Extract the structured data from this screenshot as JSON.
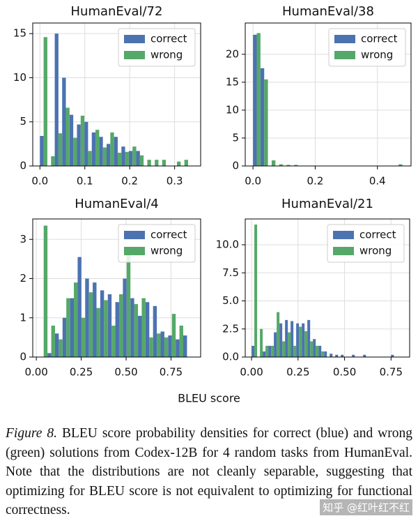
{
  "chart_data": [
    {
      "type": "histogram",
      "title": "HumanEval/72",
      "bins": [
        0,
        0.0165,
        0.033,
        0.0495,
        0.066,
        0.0825,
        0.099,
        0.1155,
        0.132,
        0.1485,
        0.165,
        0.1815,
        0.198,
        0.2145,
        0.231,
        0.2475,
        0.264,
        0.2805,
        0.297,
        0.3135,
        0.33
      ],
      "series": [
        {
          "name": "correct",
          "color": "#4c72b0",
          "values": [
            3.4,
            0,
            15,
            10,
            5.8,
            4.7,
            5,
            3.8,
            3.3,
            2.5,
            3.3,
            2.2,
            1.7,
            1.7,
            0,
            0,
            0,
            0,
            0,
            0
          ]
        },
        {
          "name": "wrong",
          "color": "#55a868",
          "values": [
            14.6,
            1.1,
            3.7,
            6.6,
            3.2,
            5.7,
            1.7,
            4.1,
            2.1,
            3.8,
            1.5,
            1.6,
            2.2,
            1.2,
            0.7,
            0.7,
            0.7,
            0,
            0.5,
            0.7
          ]
        }
      ],
      "xlim": [
        -0.016,
        0.358
      ],
      "xticks": [
        {
          "value": 0,
          "label": "0.0"
        },
        0.1,
        0.2,
        0.3
      ],
      "ylim": [
        0,
        16.2
      ],
      "yticks": [
        0,
        5,
        10,
        15
      ],
      "grid": true,
      "legend": "upper right"
    },
    {
      "type": "histogram",
      "title": "HumanEval/38",
      "bins": [
        0,
        0.024,
        0.048,
        0.072,
        0.096,
        0.12,
        0.144,
        0.168,
        0.192,
        0.216,
        0.24,
        0.264,
        0.288,
        0.312,
        0.336,
        0.36,
        0.384,
        0.408,
        0.432,
        0.456,
        0.48
      ],
      "series": [
        {
          "name": "correct",
          "color": "#4c72b0",
          "values": [
            23.5,
            17.5,
            0,
            0,
            0,
            0,
            0,
            0,
            0,
            0,
            0,
            0,
            0,
            0,
            0,
            0,
            0,
            0,
            0,
            0
          ]
        },
        {
          "name": "wrong",
          "color": "#55a868",
          "values": [
            23.8,
            15.5,
            1,
            0.3,
            0.2,
            0.2,
            0,
            0,
            0,
            0,
            0,
            0,
            0,
            0,
            0,
            0,
            0,
            0,
            0,
            0.3
          ]
        }
      ],
      "xlim": [
        -0.025,
        0.508
      ],
      "xticks": [
        {
          "value": 0,
          "label": "0.0"
        },
        0.2,
        0.4
      ],
      "ylim": [
        0,
        25.6
      ],
      "yticks": [
        0,
        5,
        10,
        15,
        20
      ],
      "grid": true,
      "legend": "upper right"
    },
    {
      "type": "histogram",
      "title": "HumanEval/4",
      "bins": [
        0.02,
        0.062,
        0.104,
        0.146,
        0.188,
        0.23,
        0.272,
        0.314,
        0.356,
        0.398,
        0.44,
        0.482,
        0.524,
        0.566,
        0.608,
        0.65,
        0.692,
        0.734,
        0.776,
        0.818,
        0.86
      ],
      "series": [
        {
          "name": "correct",
          "color": "#4c72b0",
          "values": [
            0,
            0.1,
            0.6,
            1.0,
            1.5,
            2.55,
            2.0,
            1.9,
            1.7,
            1.6,
            1.4,
            2.0,
            1.5,
            1.05,
            1.4,
            1.3,
            0.65,
            0.55,
            0.45,
            0.55
          ]
        },
        {
          "name": "wrong",
          "color": "#55a868",
          "values": [
            3.35,
            0.8,
            0.45,
            1.5,
            1.9,
            1.0,
            1.65,
            1.25,
            1.45,
            0.8,
            1.6,
            2.75,
            1.35,
            1.5,
            0.5,
            0.6,
            0.5,
            1.1,
            0.8,
            0
          ]
        }
      ],
      "xlim": [
        -0.02,
        0.915
      ],
      "xticks": [
        {
          "value": 0,
          "label": "0.00"
        },
        0.25,
        {
          "value": 0.5,
          "label": "0.50"
        },
        0.75
      ],
      "ylim": [
        0,
        3.52
      ],
      "yticks": [
        0,
        1,
        2,
        3
      ],
      "grid": true,
      "legend": "upper right"
    },
    {
      "type": "histogram",
      "title": "HumanEval/21",
      "bins": [
        0,
        0.03,
        0.06,
        0.09,
        0.12,
        0.15,
        0.18,
        0.21,
        0.24,
        0.27,
        0.3,
        0.33,
        0.36,
        0.39,
        0.42,
        0.45,
        0.48,
        0.51,
        0.54,
        0.57,
        0.6,
        0.63,
        0.66,
        0.69,
        0.72,
        0.75,
        0.78
      ],
      "series": [
        {
          "name": "correct",
          "color": "#4c72b0",
          "values": [
            1.0,
            0,
            0.5,
            1.0,
            2.2,
            3.0,
            3.3,
            3.2,
            3.0,
            3.0,
            3.3,
            1.6,
            1.0,
            0.5,
            0.3,
            0.2,
            0.2,
            0,
            0.2,
            0,
            0.2,
            0,
            0,
            0,
            0,
            0.2
          ]
        },
        {
          "name": "wrong",
          "color": "#55a868",
          "values": [
            11.8,
            2.5,
            1.0,
            1.0,
            4.0,
            1.4,
            2.2,
            1.0,
            2.7,
            2.3,
            1.4,
            1.0,
            0.5,
            0,
            0,
            0,
            0,
            0,
            0,
            0,
            0,
            0,
            0,
            0,
            0,
            0
          ]
        }
      ],
      "xlim": [
        -0.034,
        0.85
      ],
      "xticks": [
        {
          "value": 0,
          "label": "0.00"
        },
        0.25,
        {
          "value": 0.5,
          "label": "0.50"
        },
        0.75
      ],
      "ylim": [
        0,
        12.3
      ],
      "yticks": [
        {
          "value": 0,
          "label": "0.0"
        },
        2.5,
        {
          "value": 5,
          "label": "5.0"
        },
        7.5,
        {
          "value": 10,
          "label": "10.0"
        }
      ],
      "grid": true,
      "legend": "upper right"
    }
  ],
  "xlabel": "BLEU score",
  "caption": {
    "label": "Figure 8.",
    "text": "BLEU score probability densities for correct (blue) and wrong (green) solutions from Codex-12B for 4 random tasks from HumanEval. Note that the distributions are not cleanly separable, suggesting that optimizing for BLEU score is not equivalent to optimizing for functional correctness."
  },
  "watermark": "知乎 @红叶红不红"
}
